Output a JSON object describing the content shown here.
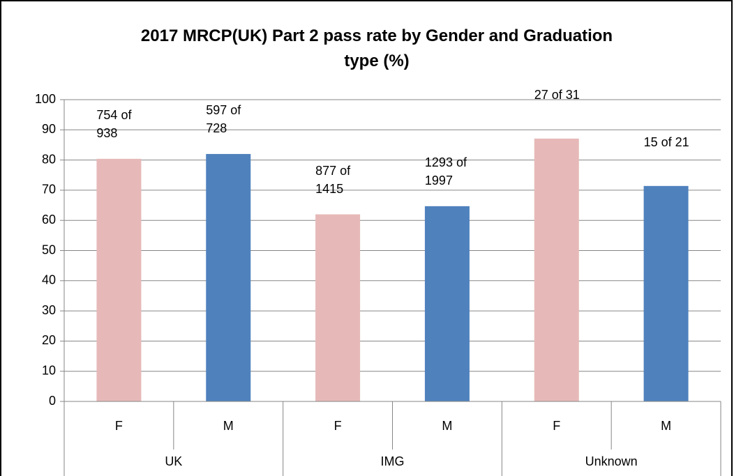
{
  "chart_data": {
    "type": "bar",
    "title": "2017 MRCP(UK) Part 2 pass rate by Gender and Graduation type  (%)",
    "categories": [
      "F",
      "M",
      "F",
      "M",
      "F",
      "M"
    ],
    "groups": [
      "UK",
      "IMG",
      "Unknown"
    ],
    "values": [
      80.4,
      82.0,
      62.0,
      64.7,
      87.1,
      71.4
    ],
    "annotations": [
      "754 of 938",
      "597 of 728",
      "877 of 1415",
      "1293 of 1997",
      "27 of 31",
      "15 of 21"
    ],
    "colors": [
      "#e6b9b8",
      "#4f81bd",
      "#e6b9b8",
      "#4f81bd",
      "#e6b9b8",
      "#4f81bd"
    ],
    "ylim": [
      0,
      100
    ],
    "yticks": [
      0,
      10,
      20,
      30,
      40,
      50,
      60,
      70,
      80,
      90,
      100
    ],
    "grid": true
  }
}
